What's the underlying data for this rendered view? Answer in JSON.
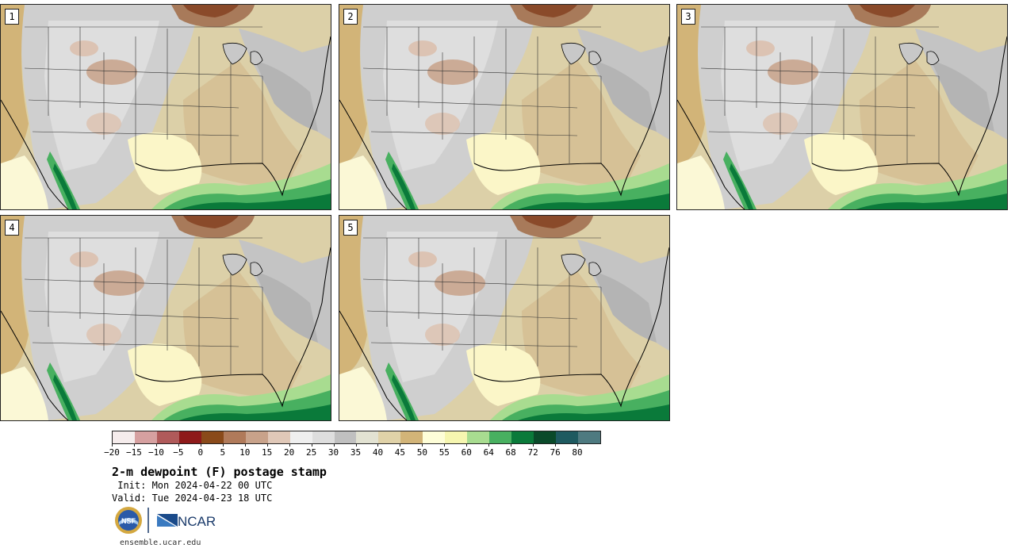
{
  "panels": [
    {
      "label": "1"
    },
    {
      "label": "2"
    },
    {
      "label": "3"
    },
    {
      "label": "4"
    },
    {
      "label": "5"
    }
  ],
  "colorbar": {
    "colors": [
      "#f5ecec",
      "#d6a0a0",
      "#b05a5a",
      "#8e1a1a",
      "#8a4a1a",
      "#b07a5a",
      "#c8a28a",
      "#e0c8b8",
      "#efefef",
      "#dedede",
      "#c0c0c0",
      "#e2e2d2",
      "#e0d2a8",
      "#d2b478",
      "#fefed8",
      "#f6f6b0",
      "#a8dc90",
      "#48b060",
      "#0a7a3a",
      "#0a4a2a",
      "#1e5a60",
      "#4e7a80"
    ],
    "tick_labels": [
      "−20",
      "−15",
      "−10",
      "−5",
      "0",
      "5",
      "10",
      "15",
      "20",
      "25",
      "30",
      "35",
      "40",
      "45",
      "50",
      "55",
      "60",
      "64",
      "68",
      "72",
      "76",
      "80"
    ]
  },
  "title": "2-m dewpoint (F) postage stamp",
  "init": " Init: Mon 2024-04-22 00 UTC",
  "valid": "Valid: Tue 2024-04-23 18 UTC",
  "logos": {
    "nsf": "NSF",
    "ncar": "NCAR"
  },
  "url": "ensemble.ucar.edu"
}
